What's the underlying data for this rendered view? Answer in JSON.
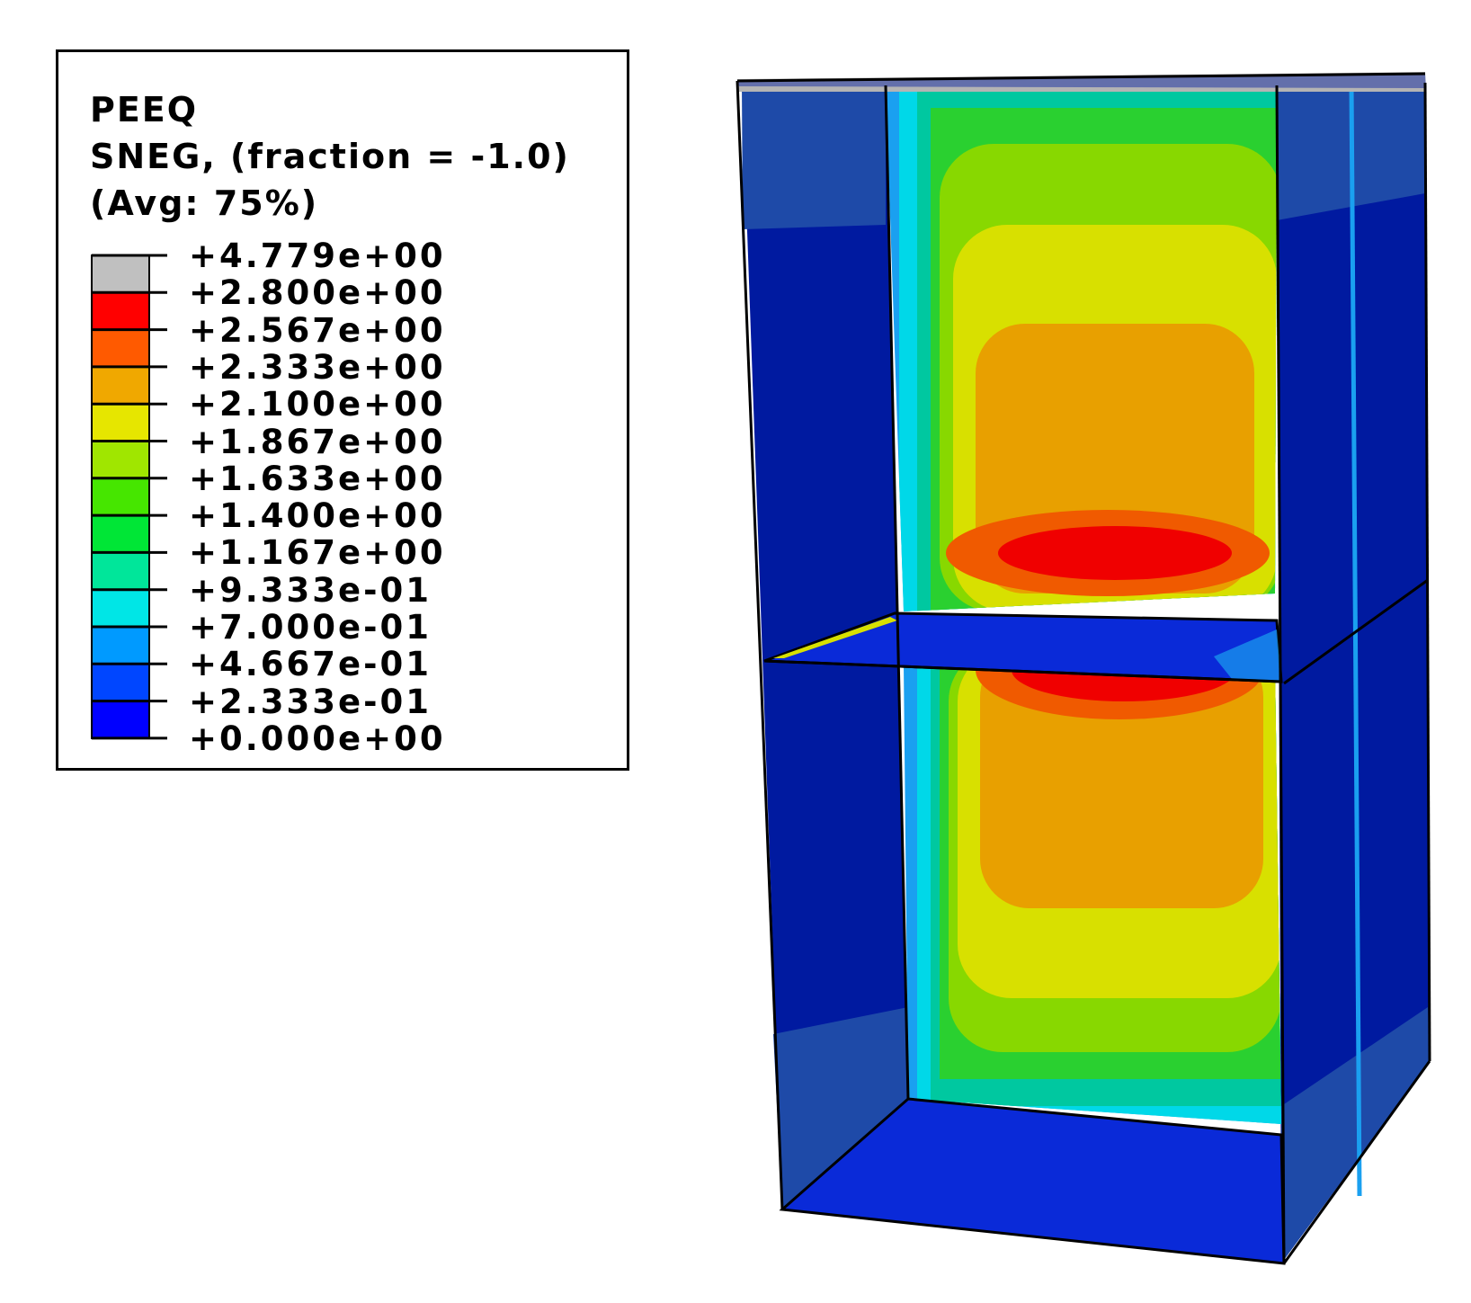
{
  "legend": {
    "title": "PEEQ",
    "subtitle": "SNEG, (fraction = -1.0)",
    "averaging": "(Avg: 75%)",
    "levels": [
      "+4.779e+00",
      "+2.800e+00",
      "+2.567e+00",
      "+2.333e+00",
      "+2.100e+00",
      "+1.867e+00",
      "+1.633e+00",
      "+1.400e+00",
      "+1.167e+00",
      "+9.333e-01",
      "+7.000e-01",
      "+4.667e-01",
      "+2.333e-01",
      "+0.000e+00"
    ],
    "band_colors": [
      "#c0c0c0",
      "#ff0000",
      "#ff5a00",
      "#f0a800",
      "#e6e600",
      "#a0e600",
      "#46e600",
      "#00e636",
      "#00e69a",
      "#00e6e6",
      "#009aff",
      "#0046ff",
      "#0000ff"
    ]
  },
  "model": {
    "field_colors": {
      "deep_blue": "#001aa0",
      "blue": "#0a2ad8",
      "steel_blue": "#1e4aa8",
      "light_blue": "#1aa0f0",
      "cyan": "#00d8e8",
      "teal": "#00c8a0",
      "green": "#2ad030",
      "yellow_green": "#88d800",
      "yellow": "#d8e000",
      "orange": "#e8a000",
      "dark_orange": "#f05a00",
      "red": "#f00000",
      "grey": "#b4b4b4"
    }
  }
}
